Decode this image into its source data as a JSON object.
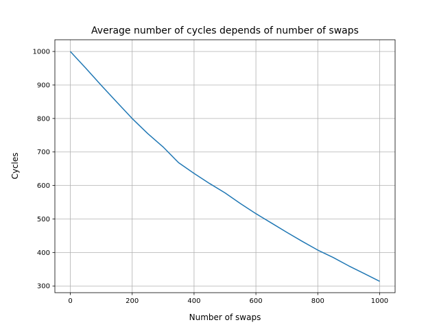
{
  "chart_data": {
    "type": "line",
    "title": "Average number of cycles depends of number of swaps",
    "xlabel": "Number of swaps",
    "ylabel": "Cycles",
    "xlim": [
      -50,
      1050
    ],
    "ylim": [
      280,
      1035
    ],
    "x_ticks": [
      0,
      200,
      400,
      600,
      800,
      1000
    ],
    "y_ticks": [
      300,
      400,
      500,
      600,
      700,
      800,
      900,
      1000
    ],
    "grid": true,
    "series": [
      {
        "color": "#1f77b4",
        "x": [
          0,
          50,
          100,
          150,
          200,
          250,
          300,
          350,
          400,
          450,
          500,
          550,
          600,
          650,
          700,
          750,
          800,
          850,
          900,
          950,
          1000
        ],
        "y": [
          1000,
          950,
          899,
          849,
          800,
          755,
          715,
          668,
          636,
          606,
          578,
          546,
          516,
          488,
          460,
          433,
          407,
          385,
          360,
          337,
          314
        ]
      }
    ]
  }
}
